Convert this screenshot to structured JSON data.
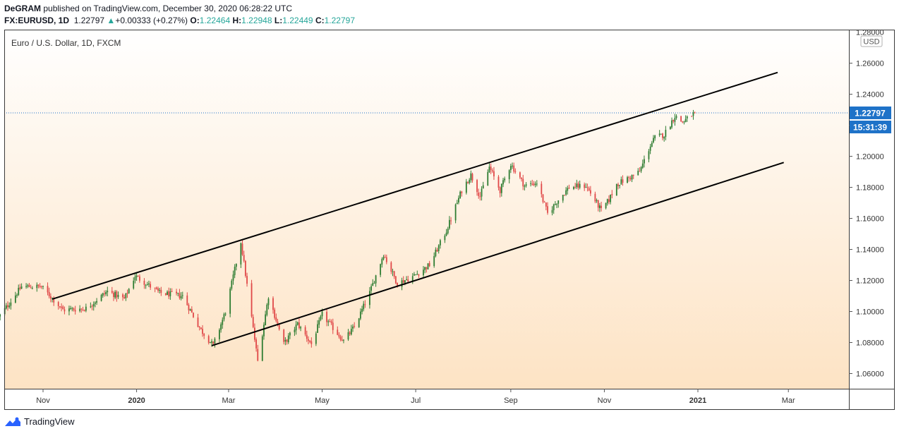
{
  "header": {
    "author": "DeGRAM",
    "published": "published on TradingView.com, December 30, 2020 06:28:22 UTC",
    "symbol": "FX:EURUSD, 1D",
    "last": "1.22797",
    "change": "+0.00333 (+0.27%)",
    "o_label": "O:",
    "o_value": "1.22464",
    "h_label": "H:",
    "h_value": "1.22948",
    "l_label": "L:",
    "l_value": "1.22449",
    "c_label": "C:",
    "c_value": "1.22797"
  },
  "footer": {
    "brand": "TradingView"
  },
  "colors": {
    "up": "#2e7d32",
    "down": "#e04848",
    "price_badge": "#1e72c8",
    "background_top": "#ffffff",
    "background_bottom": "#fde3c4",
    "channel_line": "#000000"
  },
  "chart_data": {
    "type": "candlestick",
    "title": "Euro / U.S. Dollar, 1D, FXCM",
    "currency_label": "USD",
    "price_label": "1.22797",
    "countdown_label": "15:31:39",
    "ylim": [
      1.05,
      1.28
    ],
    "y_ticks": [
      "1.06000",
      "1.08000",
      "1.10000",
      "1.12000",
      "1.14000",
      "1.16000",
      "1.18000",
      "1.20000",
      "1.22000",
      "1.24000",
      "1.26000"
    ],
    "y_top_partial": "1.28000",
    "x_ticks": [
      {
        "label": "Nov",
        "date": "2019-11-01",
        "bold": false
      },
      {
        "label": "2020",
        "date": "2020-01-01",
        "bold": true
      },
      {
        "label": "Mar",
        "date": "2020-03-01",
        "bold": false
      },
      {
        "label": "May",
        "date": "2020-05-01",
        "bold": false
      },
      {
        "label": "Jul",
        "date": "2020-07-01",
        "bold": false
      },
      {
        "label": "Sep",
        "date": "2020-09-01",
        "bold": false
      },
      {
        "label": "Nov",
        "date": "2020-11-01",
        "bold": false
      },
      {
        "label": "2021",
        "date": "2021-01-01",
        "bold": true
      },
      {
        "label": "Mar",
        "date": "2021-03-01",
        "bold": false
      }
    ],
    "last_close": 1.22797,
    "price_path": [
      [
        "2019-10-03",
        1.096
      ],
      [
        "2019-10-18",
        1.116
      ],
      [
        "2019-10-31",
        1.116
      ],
      [
        "2019-11-14",
        1.101
      ],
      [
        "2019-11-29",
        1.102
      ],
      [
        "2019-12-13",
        1.113
      ],
      [
        "2019-12-24",
        1.108
      ],
      [
        "2019-12-31",
        1.123
      ],
      [
        "2020-01-16",
        1.112
      ],
      [
        "2020-01-31",
        1.11
      ],
      [
        "2020-02-12",
        1.088
      ],
      [
        "2020-02-20",
        1.078
      ],
      [
        "2020-02-28",
        1.1
      ],
      [
        "2020-03-09",
        1.145
      ],
      [
        "2020-03-20",
        1.068
      ],
      [
        "2020-03-27",
        1.11
      ],
      [
        "2020-04-06",
        1.079
      ],
      [
        "2020-04-15",
        1.092
      ],
      [
        "2020-04-24",
        1.079
      ],
      [
        "2020-05-01",
        1.098
      ],
      [
        "2020-05-15",
        1.081
      ],
      [
        "2020-05-22",
        1.09
      ],
      [
        "2020-06-01",
        1.112
      ],
      [
        "2020-06-10",
        1.137
      ],
      [
        "2020-06-19",
        1.118
      ],
      [
        "2020-06-30",
        1.123
      ],
      [
        "2020-07-10",
        1.13
      ],
      [
        "2020-07-21",
        1.152
      ],
      [
        "2020-07-31",
        1.178
      ],
      [
        "2020-08-06",
        1.188
      ],
      [
        "2020-08-12",
        1.174
      ],
      [
        "2020-08-18",
        1.193
      ],
      [
        "2020-08-25",
        1.178
      ],
      [
        "2020-09-01",
        1.195
      ],
      [
        "2020-09-10",
        1.181
      ],
      [
        "2020-09-18",
        1.183
      ],
      [
        "2020-09-25",
        1.163
      ],
      [
        "2020-10-02",
        1.172
      ],
      [
        "2020-10-09",
        1.18
      ],
      [
        "2020-10-20",
        1.181
      ],
      [
        "2020-10-30",
        1.165
      ],
      [
        "2020-11-04",
        1.172
      ],
      [
        "2020-11-09",
        1.182
      ],
      [
        "2020-11-17",
        1.186
      ],
      [
        "2020-11-24",
        1.19
      ],
      [
        "2020-12-01",
        1.207
      ],
      [
        "2020-12-04",
        1.212
      ],
      [
        "2020-12-10",
        1.214
      ],
      [
        "2020-12-17",
        1.226
      ],
      [
        "2020-12-22",
        1.222
      ],
      [
        "2020-12-30",
        1.228
      ]
    ],
    "channel_lines": [
      {
        "name": "upper",
        "from": [
          "2019-11-07",
          1.108
        ],
        "to": [
          "2021-02-22",
          1.254
        ]
      },
      {
        "name": "lower",
        "from": [
          "2020-02-19",
          1.078
        ],
        "to": [
          "2021-02-26",
          1.196
        ]
      }
    ],
    "grid": false
  }
}
